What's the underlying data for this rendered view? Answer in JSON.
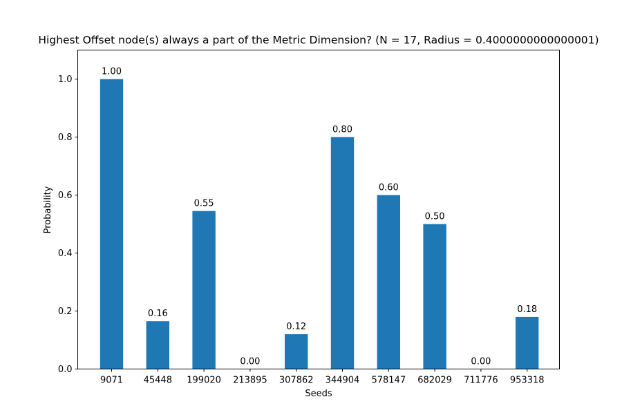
{
  "chart_data": {
    "type": "bar",
    "title": "Highest Offset node(s) always a part of the Metric Dimension? (N = 17, Radius = 0.4000000000000001)",
    "xlabel": "Seeds",
    "ylabel": "Probability",
    "categories": [
      "9071",
      "45448",
      "199020",
      "213895",
      "307862",
      "344904",
      "578147",
      "682029",
      "711776",
      "953318"
    ],
    "values": [
      1.0,
      0.165,
      0.545,
      0.0,
      0.12,
      0.8,
      0.6,
      0.5,
      0.0,
      0.18
    ],
    "data_labels": [
      "1.00",
      "0.16",
      "0.55",
      "0.00",
      "0.12",
      "0.80",
      "0.60",
      "0.50",
      "0.00",
      "0.18"
    ],
    "ylim": [
      0,
      1.1
    ],
    "yticks": [
      0.0,
      0.2,
      0.4,
      0.6,
      0.8,
      1.0
    ],
    "ytick_labels": [
      "0.0",
      "0.2",
      "0.4",
      "0.6",
      "0.8",
      "1.0"
    ],
    "bar_color": "#1f77b4",
    "grid": false,
    "legend": "none"
  }
}
